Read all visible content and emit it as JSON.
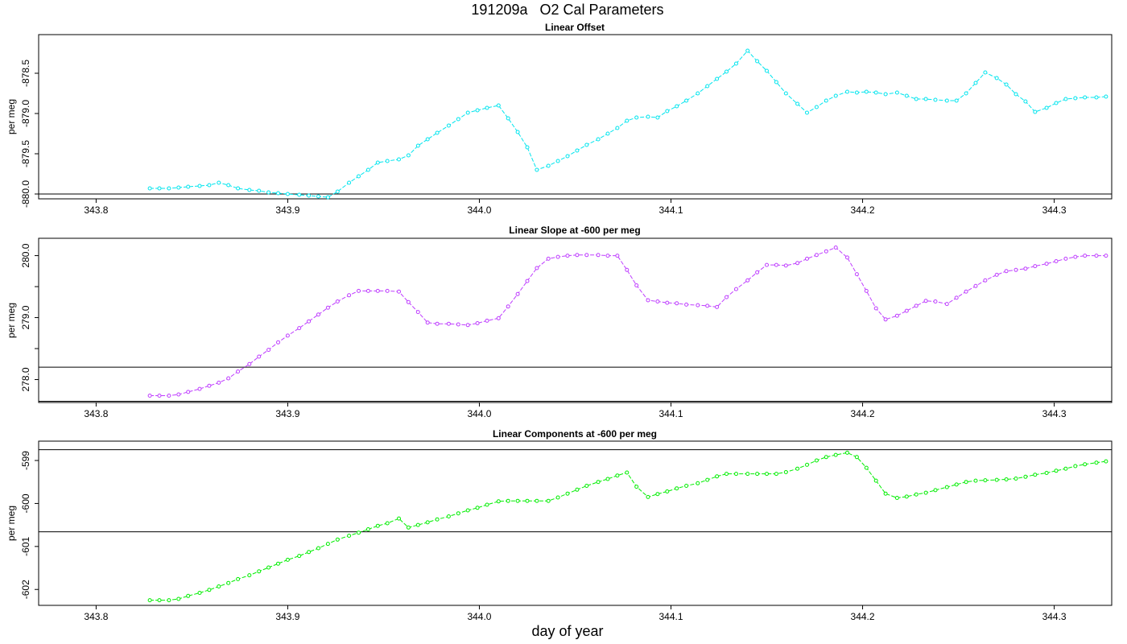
{
  "page": {
    "title": "191209a   O2 Cal Parameters",
    "xlabel": "day of year"
  },
  "chart_data": [
    {
      "type": "line",
      "title": "Linear Offset",
      "ylabel": "per meg",
      "xlim": [
        343.77,
        344.33
      ],
      "ylim": [
        -880.06,
        -878.02
      ],
      "xticks": [
        343.8,
        343.9,
        344.0,
        344.1,
        344.2,
        344.3
      ],
      "xtick_labels": [
        "343.8",
        "343.9",
        "344.0",
        "344.1",
        "344.2",
        "344.3"
      ],
      "yticks": [
        -880.0,
        -879.5,
        -879.0,
        -878.5
      ],
      "ytick_labels": [
        "-880.0",
        "-879.5",
        "-879.0",
        "-878.5"
      ],
      "hlines": [
        -880.0
      ],
      "color": "#00e5ee",
      "x": [
        343.828,
        343.833,
        343.838,
        343.843,
        343.848,
        343.854,
        343.859,
        343.864,
        343.869,
        343.874,
        343.88,
        343.885,
        343.89,
        343.895,
        343.9,
        343.906,
        343.911,
        343.916,
        343.921,
        343.926,
        343.932,
        343.937,
        343.942,
        343.947,
        343.952,
        343.958,
        343.963,
        343.968,
        343.973,
        343.978,
        343.984,
        343.989,
        343.994,
        343.999,
        344.004,
        344.01,
        344.015,
        344.02,
        344.025,
        344.03,
        344.036,
        344.041,
        344.046,
        344.051,
        344.056,
        344.062,
        344.067,
        344.072,
        344.077,
        344.082,
        344.088,
        344.093,
        344.098,
        344.103,
        344.108,
        344.114,
        344.119,
        344.124,
        344.129,
        344.134,
        344.14,
        344.145,
        344.15,
        344.155,
        344.16,
        344.166,
        344.171,
        344.176,
        344.181,
        344.186,
        344.192,
        344.197,
        344.202,
        344.207,
        344.212,
        344.218,
        344.223,
        344.228,
        344.233,
        344.238,
        344.244,
        344.249,
        344.254,
        344.259,
        344.264,
        344.27,
        344.275,
        344.28,
        344.285,
        344.29,
        344.296,
        344.301,
        344.306,
        344.311,
        344.316,
        344.322,
        344.327
      ],
      "y": [
        -879.93,
        -879.93,
        -879.93,
        -879.92,
        -879.91,
        -879.9,
        -879.89,
        -879.86,
        -879.89,
        -879.93,
        -879.95,
        -879.96,
        -879.98,
        -879.99,
        -880.0,
        -880.01,
        -880.02,
        -880.03,
        -880.04,
        -879.97,
        -879.86,
        -879.78,
        -879.7,
        -879.61,
        -879.59,
        -879.57,
        -879.52,
        -879.4,
        -879.32,
        -879.24,
        -879.15,
        -879.07,
        -878.99,
        -878.96,
        -878.93,
        -878.9,
        -879.06,
        -879.23,
        -879.42,
        -879.7,
        -879.65,
        -879.59,
        -879.53,
        -879.46,
        -879.39,
        -879.32,
        -879.25,
        -879.18,
        -879.09,
        -879.05,
        -879.04,
        -879.05,
        -878.97,
        -878.91,
        -878.84,
        -878.75,
        -878.66,
        -878.57,
        -878.48,
        -878.38,
        -878.22,
        -878.35,
        -878.47,
        -878.61,
        -878.75,
        -878.88,
        -878.99,
        -878.92,
        -878.84,
        -878.78,
        -878.73,
        -878.74,
        -878.73,
        -878.74,
        -878.76,
        -878.74,
        -878.78,
        -878.82,
        -878.82,
        -878.83,
        -878.84,
        -878.84,
        -878.75,
        -878.62,
        -878.49,
        -878.56,
        -878.64,
        -878.76,
        -878.85,
        -878.98,
        -878.93,
        -878.87,
        -878.82,
        -878.81,
        -878.8,
        -878.8,
        -878.79
      ]
    },
    {
      "type": "line",
      "title": "Linear Slope at -600 per meg",
      "ylabel": "per meg",
      "xlim": [
        343.77,
        344.33
      ],
      "ylim": [
        277.63,
        280.28
      ],
      "xticks": [
        343.8,
        343.9,
        344.0,
        344.1,
        344.2,
        344.3
      ],
      "xtick_labels": [
        "343.8",
        "343.9",
        "344.0",
        "344.1",
        "344.2",
        "344.3"
      ],
      "yticks": [
        278.0,
        278.5,
        279.0,
        279.5,
        280.0
      ],
      "ytick_labels": [
        "278.0",
        "",
        "279.0",
        "",
        "280.0"
      ],
      "hlines": [
        278.2,
        277.65
      ],
      "color": "#bf3eff",
      "x": [
        343.828,
        343.833,
        343.838,
        343.843,
        343.848,
        343.854,
        343.859,
        343.864,
        343.869,
        343.874,
        343.88,
        343.885,
        343.89,
        343.895,
        343.9,
        343.906,
        343.911,
        343.916,
        343.921,
        343.926,
        343.932,
        343.937,
        343.942,
        343.947,
        343.952,
        343.958,
        343.963,
        343.968,
        343.973,
        343.978,
        343.984,
        343.989,
        343.994,
        343.999,
        344.004,
        344.01,
        344.015,
        344.02,
        344.025,
        344.03,
        344.036,
        344.041,
        344.046,
        344.051,
        344.056,
        344.062,
        344.067,
        344.072,
        344.077,
        344.082,
        344.088,
        344.093,
        344.098,
        344.103,
        344.108,
        344.114,
        344.119,
        344.124,
        344.129,
        344.134,
        344.14,
        344.145,
        344.15,
        344.155,
        344.16,
        344.166,
        344.171,
        344.176,
        344.181,
        344.186,
        344.192,
        344.197,
        344.202,
        344.207,
        344.212,
        344.218,
        344.223,
        344.228,
        344.233,
        344.238,
        344.244,
        344.249,
        344.254,
        344.259,
        344.264,
        344.27,
        344.275,
        344.28,
        344.285,
        344.29,
        344.296,
        344.301,
        344.306,
        344.311,
        344.316,
        344.322,
        344.327
      ],
      "y": [
        277.74,
        277.74,
        277.74,
        277.76,
        277.8,
        277.85,
        277.9,
        277.95,
        278.02,
        278.13,
        278.25,
        278.37,
        278.48,
        278.6,
        278.71,
        278.83,
        278.94,
        279.05,
        279.16,
        279.26,
        279.36,
        279.43,
        279.43,
        279.43,
        279.43,
        279.42,
        279.25,
        279.09,
        278.92,
        278.9,
        278.9,
        278.89,
        278.88,
        278.91,
        278.95,
        278.99,
        279.18,
        279.38,
        279.59,
        279.8,
        279.95,
        279.98,
        280.0,
        280.01,
        280.01,
        280.01,
        280.0,
        280.0,
        279.77,
        279.52,
        279.28,
        279.26,
        279.24,
        279.23,
        279.21,
        279.2,
        279.19,
        279.17,
        279.33,
        279.46,
        279.6,
        279.73,
        279.85,
        279.85,
        279.84,
        279.88,
        279.95,
        280.01,
        280.07,
        280.13,
        279.97,
        279.7,
        279.43,
        279.15,
        278.97,
        279.03,
        279.11,
        279.19,
        279.27,
        279.26,
        279.22,
        279.32,
        279.42,
        279.51,
        279.6,
        279.69,
        279.75,
        279.77,
        279.79,
        279.83,
        279.87,
        279.91,
        279.95,
        279.98,
        280.0,
        280.0,
        280.0
      ]
    },
    {
      "type": "line",
      "title": "Linear Components at -600 per meg",
      "ylabel": "per meg",
      "xlim": [
        343.77,
        344.33
      ],
      "ylim": [
        -602.37,
        -598.55
      ],
      "xticks": [
        343.8,
        343.9,
        344.0,
        344.1,
        344.2,
        344.3
      ],
      "xtick_labels": [
        "343.8",
        "343.9",
        "344.0",
        "344.1",
        "344.2",
        "344.3"
      ],
      "yticks": [
        -602,
        -601,
        -600,
        -599
      ],
      "ytick_labels": [
        "-602",
        "-601",
        "-600",
        "-599"
      ],
      "hlines": [
        -598.75,
        -600.66
      ],
      "color": "#00ee00",
      "x": [
        343.828,
        343.833,
        343.838,
        343.843,
        343.848,
        343.854,
        343.859,
        343.864,
        343.869,
        343.874,
        343.88,
        343.885,
        343.89,
        343.895,
        343.9,
        343.906,
        343.911,
        343.916,
        343.921,
        343.926,
        343.932,
        343.937,
        343.942,
        343.947,
        343.952,
        343.958,
        343.963,
        343.968,
        343.973,
        343.978,
        343.984,
        343.989,
        343.994,
        343.999,
        344.004,
        344.01,
        344.015,
        344.02,
        344.025,
        344.03,
        344.036,
        344.041,
        344.046,
        344.051,
        344.056,
        344.062,
        344.067,
        344.072,
        344.077,
        344.082,
        344.088,
        344.093,
        344.098,
        344.103,
        344.108,
        344.114,
        344.119,
        344.124,
        344.129,
        344.134,
        344.14,
        344.145,
        344.15,
        344.155,
        344.16,
        344.166,
        344.171,
        344.176,
        344.181,
        344.186,
        344.192,
        344.197,
        344.202,
        344.207,
        344.212,
        344.218,
        344.223,
        344.228,
        344.233,
        344.238,
        344.244,
        344.249,
        344.254,
        344.259,
        344.264,
        344.27,
        344.275,
        344.28,
        344.285,
        344.29,
        344.296,
        344.301,
        344.306,
        344.311,
        344.316,
        344.322,
        344.327
      ],
      "y": [
        -602.25,
        -602.25,
        -602.25,
        -602.22,
        -602.15,
        -602.08,
        -602.01,
        -601.93,
        -601.85,
        -601.76,
        -601.67,
        -601.58,
        -601.49,
        -601.4,
        -601.31,
        -601.22,
        -601.13,
        -601.04,
        -600.94,
        -600.84,
        -600.75,
        -600.68,
        -600.6,
        -600.52,
        -600.46,
        -600.35,
        -600.56,
        -600.5,
        -600.44,
        -600.37,
        -600.3,
        -600.23,
        -600.16,
        -600.1,
        -600.03,
        -599.95,
        -599.94,
        -599.94,
        -599.94,
        -599.94,
        -599.94,
        -599.86,
        -599.77,
        -599.68,
        -599.59,
        -599.5,
        -599.43,
        -599.35,
        -599.28,
        -599.61,
        -599.85,
        -599.78,
        -599.72,
        -599.65,
        -599.59,
        -599.53,
        -599.45,
        -599.37,
        -599.31,
        -599.31,
        -599.31,
        -599.31,
        -599.31,
        -599.31,
        -599.27,
        -599.19,
        -599.1,
        -599.0,
        -598.92,
        -598.87,
        -598.82,
        -598.92,
        -599.17,
        -599.47,
        -599.77,
        -599.87,
        -599.84,
        -599.79,
        -599.75,
        -599.69,
        -599.62,
        -599.56,
        -599.5,
        -599.47,
        -599.46,
        -599.45,
        -599.44,
        -599.42,
        -599.38,
        -599.33,
        -599.29,
        -599.24,
        -599.19,
        -599.13,
        -599.09,
        -599.05,
        -599.02
      ]
    }
  ]
}
